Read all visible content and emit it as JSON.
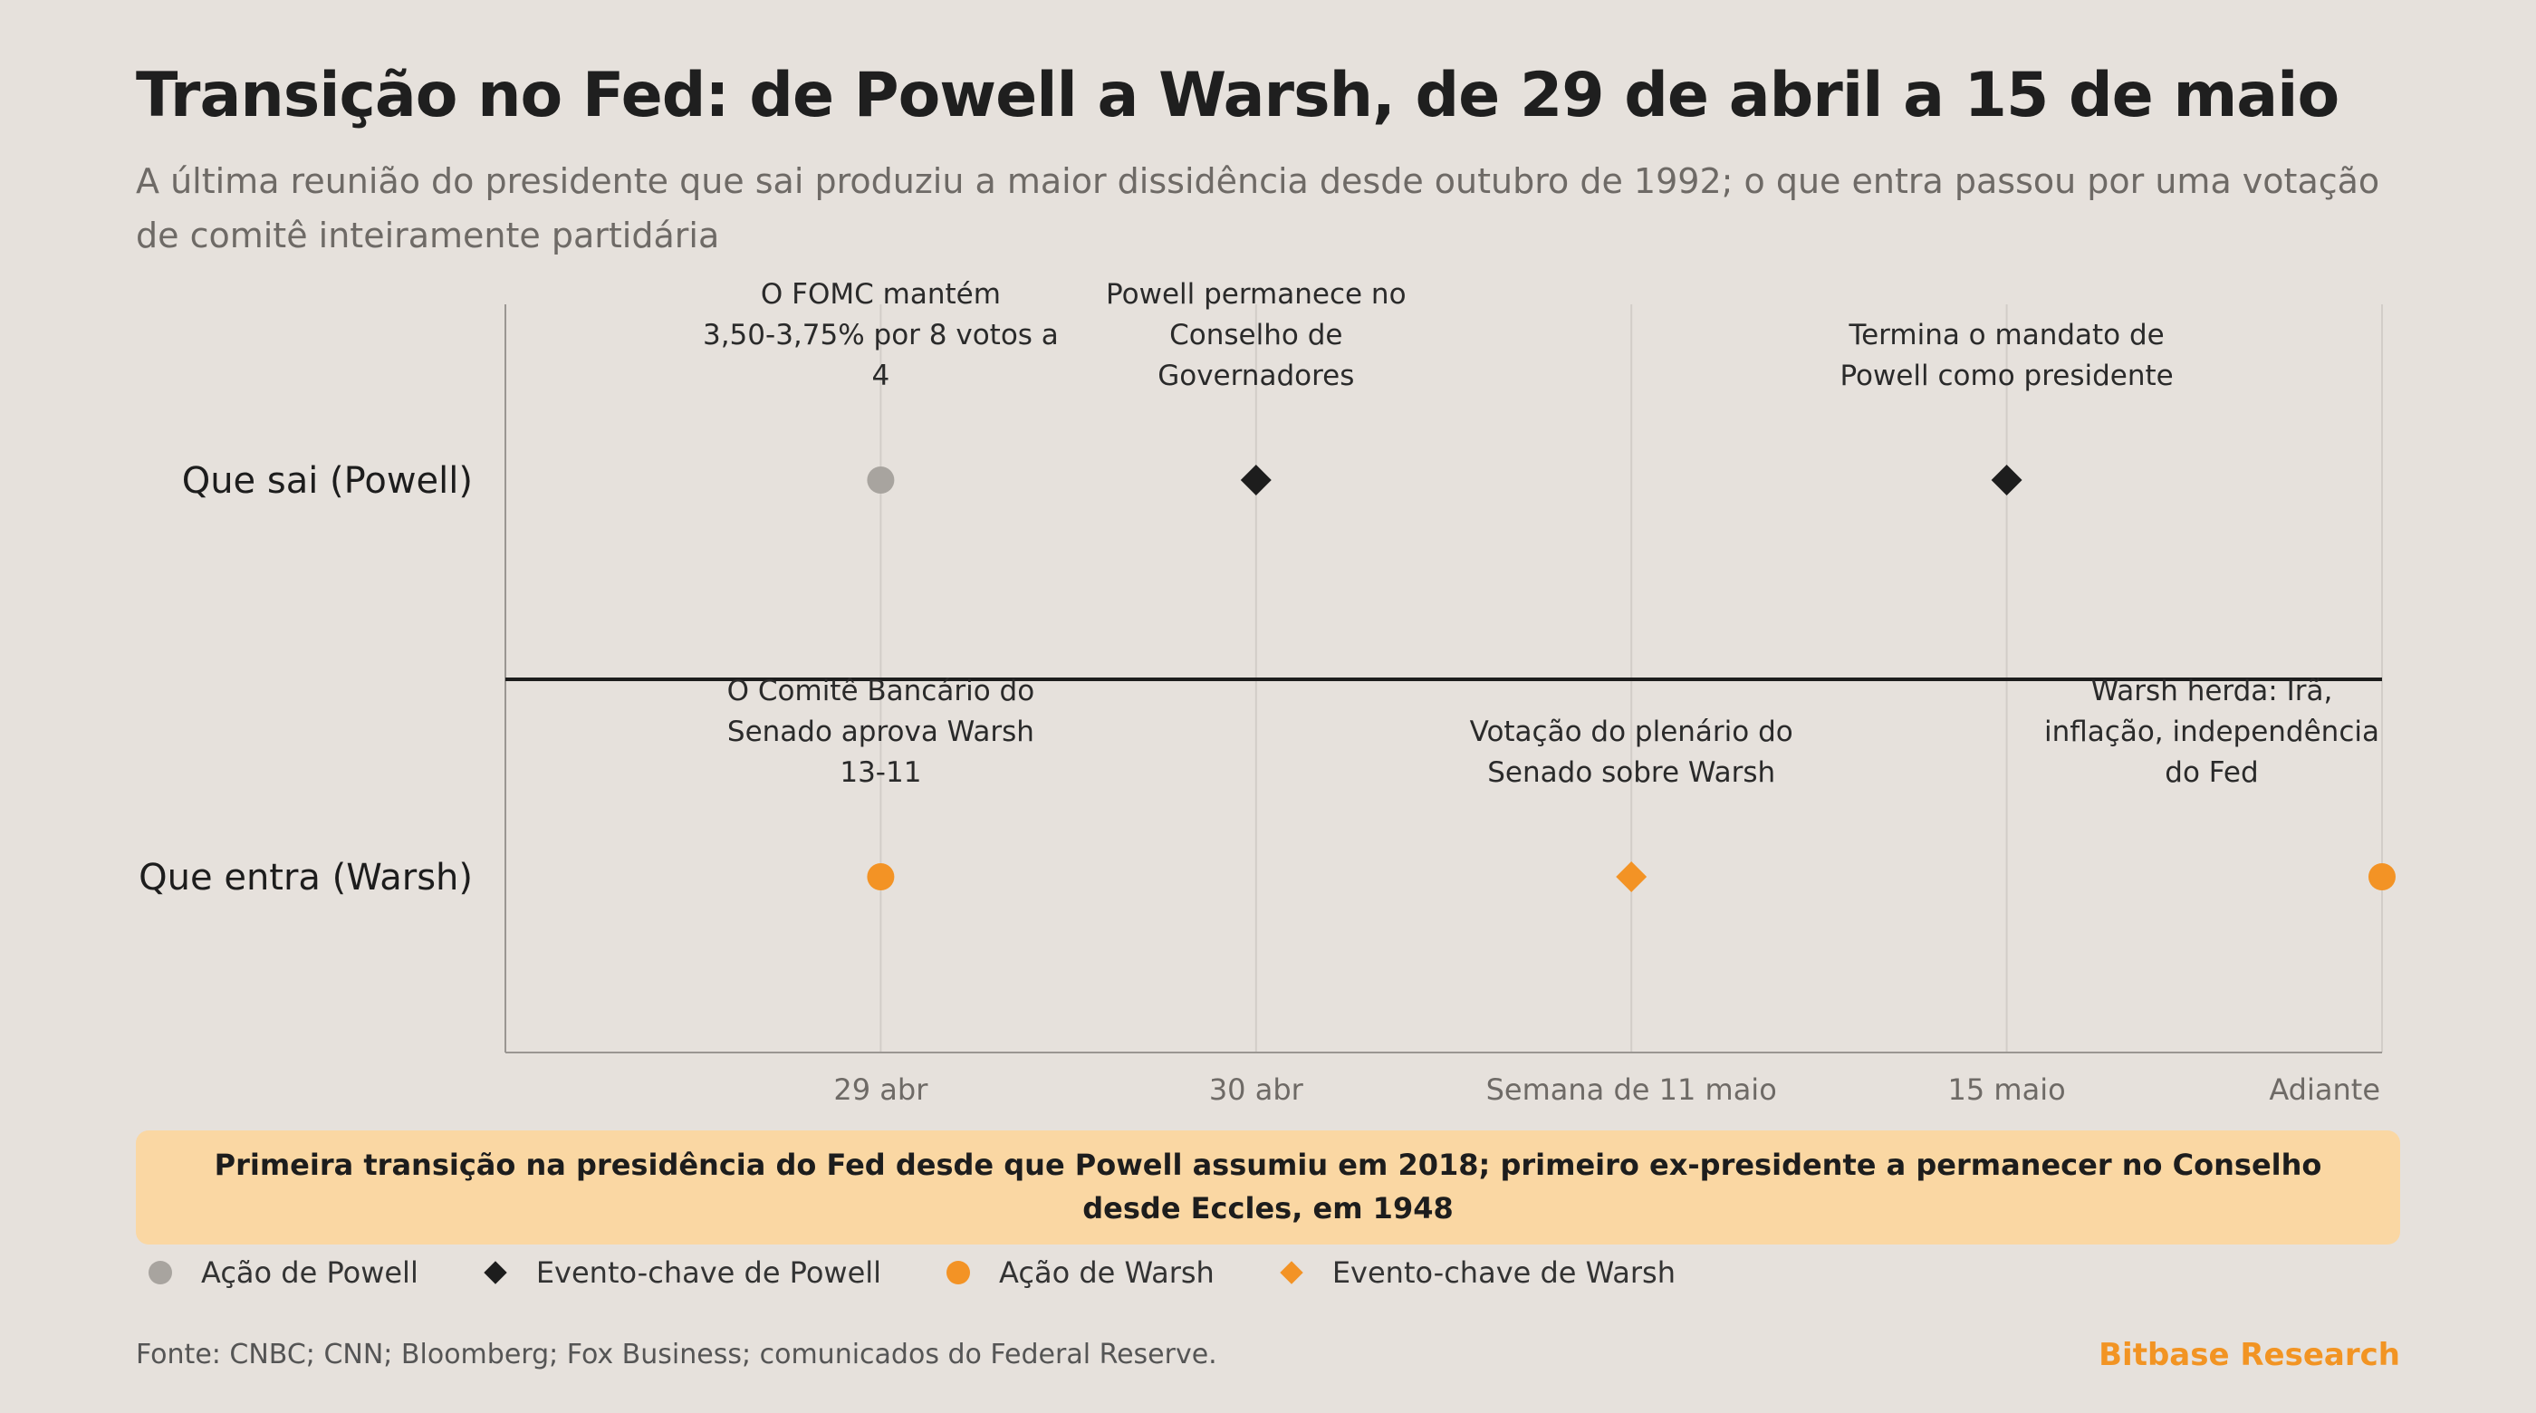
{
  "header": {
    "title": "Transição no Fed: de Powell a Warsh, de 29 de abril a 15 de maio",
    "subtitle": "A última reunião do presidente que sai produziu a maior dissidência desde outubro de 1992; o que entra passou por uma votação de comitê inteiramente partidária"
  },
  "colors": {
    "background": "#e6e1dc",
    "powell_action": "#a8a49f",
    "powell_key": "#1d1d1d",
    "warsh_action": "#f39325",
    "warsh_key": "#f39325",
    "callout_bg": "#fad7a3",
    "brand": "#f29423"
  },
  "chart_data": {
    "type": "scatter",
    "x_categories": [
      "29 abr",
      "30 abr",
      "Semana de 11 maio",
      "15 maio",
      "Adiante"
    ],
    "y_categories": [
      "Que sai (Powell)",
      "Que entra (Warsh)"
    ],
    "points": [
      {
        "x": "29 abr",
        "y": "Que sai (Powell)",
        "kind": "Ação de Powell",
        "label": [
          "O FOMC mantém",
          "3,50-3,75% por 8 votos a",
          "4"
        ]
      },
      {
        "x": "30 abr",
        "y": "Que sai (Powell)",
        "kind": "Evento-chave de Powell",
        "label": [
          "Powell permanece no",
          "Conselho de",
          "Governadores"
        ]
      },
      {
        "x": "15 maio",
        "y": "Que sai (Powell)",
        "kind": "Evento-chave de Powell",
        "label": [
          "Termina o mandato de",
          "Powell como presidente"
        ]
      },
      {
        "x": "29 abr",
        "y": "Que entra (Warsh)",
        "kind": "Ação de Warsh",
        "label": [
          "O Comitê Bancário do",
          "Senado aprova Warsh",
          "13-11"
        ]
      },
      {
        "x": "Semana de 11 maio",
        "y": "Que entra (Warsh)",
        "kind": "Evento-chave de Warsh",
        "label": [
          "Votação do plenário do",
          "Senado sobre Warsh"
        ]
      },
      {
        "x": "Adiante",
        "y": "Que entra (Warsh)",
        "kind": "Ação de Warsh",
        "label": [
          "Warsh herda: Irã,",
          "inflação, independência",
          "do Fed"
        ]
      }
    ],
    "grid": true
  },
  "callout": {
    "text": "Primeira transição na presidência do Fed desde que Powell assumiu em 2018; primeiro ex-presidente a permanecer no Conselho desde Eccles, em 1948"
  },
  "legend": {
    "items": [
      {
        "label": "Ação de Powell",
        "icon": "circle-icon",
        "color": "#a8a49f"
      },
      {
        "label": "Evento-chave de Powell",
        "icon": "diamond-icon",
        "color": "#1d1d1d"
      },
      {
        "label": "Ação de Warsh",
        "icon": "circle-icon",
        "color": "#f39325"
      },
      {
        "label": "Evento-chave de Warsh",
        "icon": "diamond-icon",
        "color": "#f39325"
      }
    ]
  },
  "footer": {
    "source": "Fonte: CNBC; CNN; Bloomberg; Fox Business; comunicados do Federal Reserve.",
    "brand": "Bitbase Research"
  }
}
